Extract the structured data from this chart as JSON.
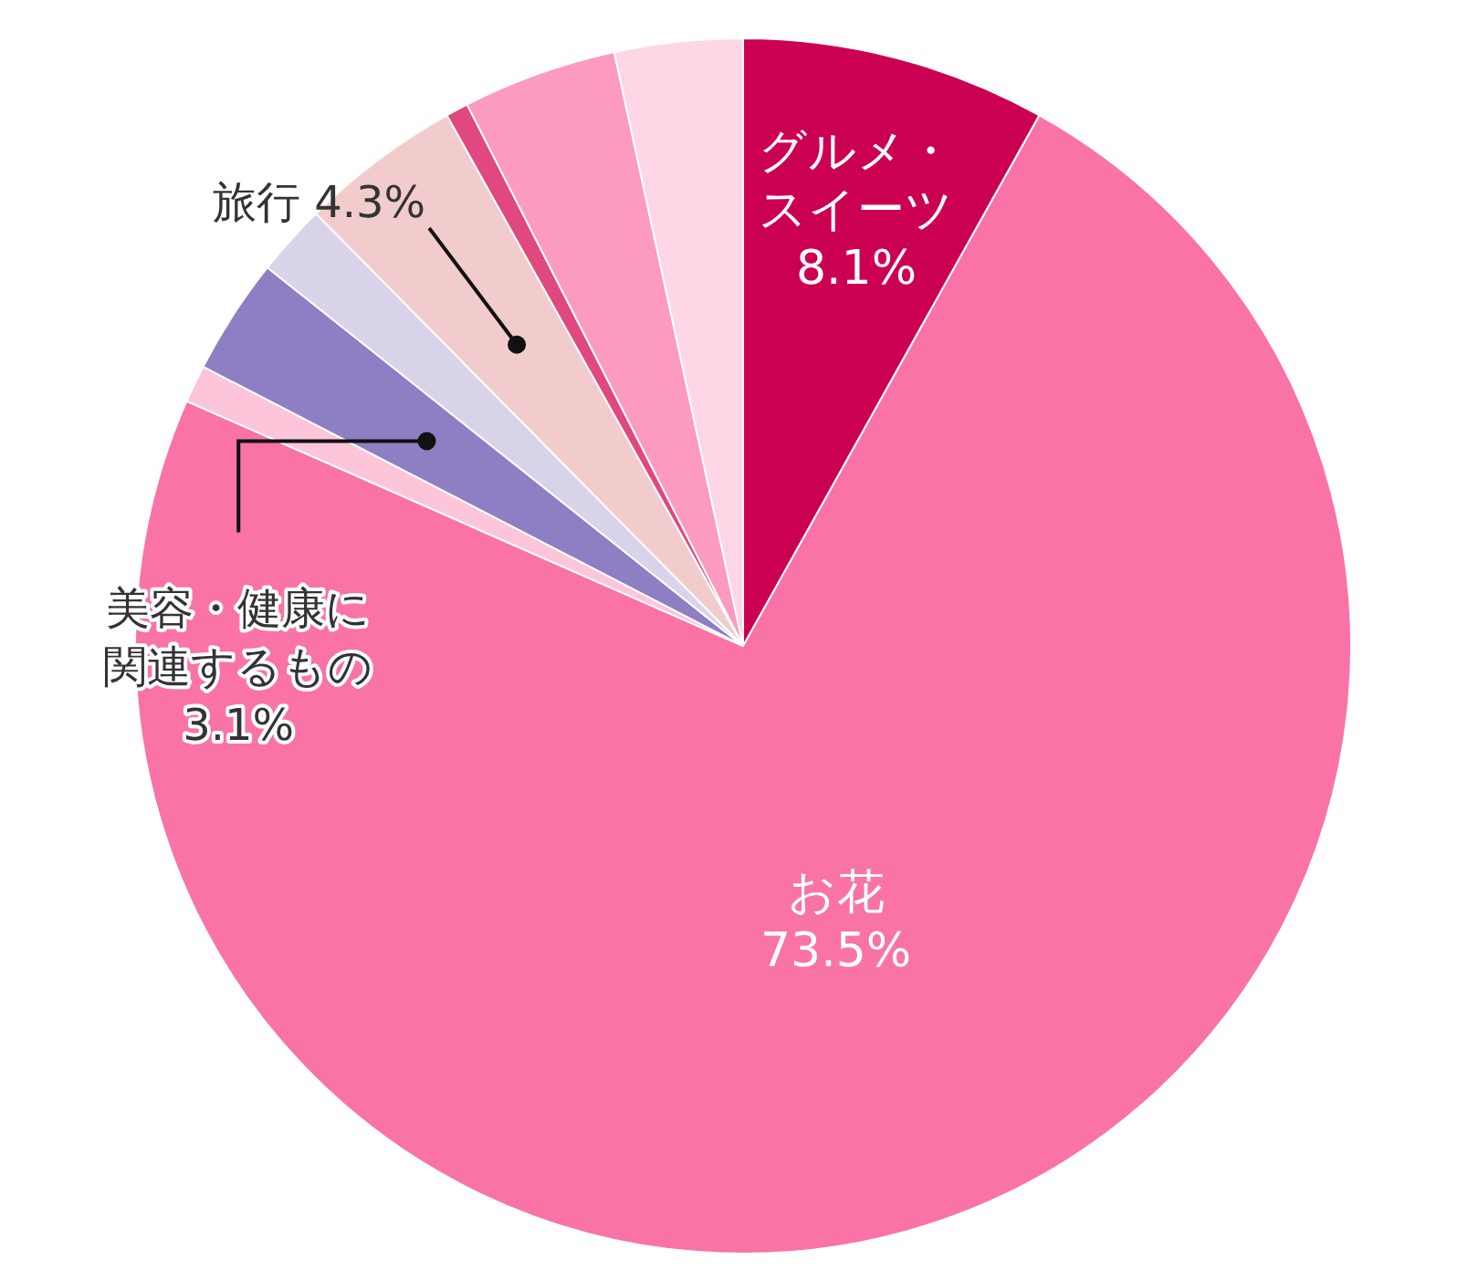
{
  "chart_data": {
    "type": "pie",
    "categories": [
      "グルメ・スイーツ",
      "お花",
      null,
      "美容・健康に関連するもの",
      null,
      "旅行",
      null,
      null,
      null
    ],
    "values": [
      8.1,
      73.5,
      1.0,
      3.1,
      1.9,
      4.3,
      0.6,
      4.1,
      3.4
    ],
    "colors": [
      "#cc0052",
      "#f973a6",
      "#fcc5d9",
      "#8e7ec4",
      "#d9d3e9",
      "#f2cccc",
      "#e0487f",
      "#fc9ac0",
      "#ffd6e6"
    ],
    "value_labels": [
      "8.1%",
      "73.5%",
      null,
      "3.1%",
      null,
      "4.3%",
      null,
      null,
      null
    ],
    "legend": false
  }
}
